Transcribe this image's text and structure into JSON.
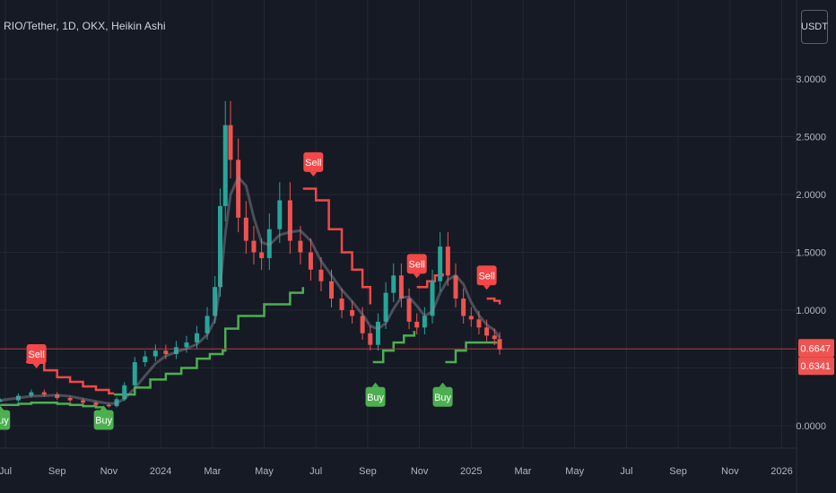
{
  "header": {
    "title": "RIO/Tether, 1D, OKX, Heikin Ashi",
    "currency": "USDT"
  },
  "colors": {
    "background": "#161a25",
    "grid": "#232733",
    "up": "#26a69a",
    "down": "#ef5350",
    "support": "#4caf50",
    "resistance": "#f44747",
    "ma": "#8a8f99",
    "last_price_line": "#b73a3a"
  },
  "chart_data": {
    "type": "line",
    "style": "heikin-ashi candles with trailing stop bands and buy/sell signals",
    "grid": true,
    "y_ticks": [
      "3.0000",
      "2.5000",
      "2.0000",
      "1.5000",
      "1.0000",
      "0.0000"
    ],
    "ylim": [
      -0.1,
      3.4
    ],
    "x_labels": [
      "Jul",
      "Sep",
      "Nov",
      "2024",
      "Mar",
      "May",
      "Jul",
      "Sep",
      "Nov",
      "2025",
      "Mar",
      "May",
      "Jul",
      "Sep",
      "Nov",
      "2026"
    ],
    "x_months": [
      0,
      2,
      4,
      6,
      8,
      10,
      12,
      14,
      16,
      18,
      20,
      22,
      24,
      26,
      28,
      30
    ],
    "price_series": {
      "month": [
        -0.2,
        0.5,
        1.0,
        1.5,
        2.0,
        2.5,
        3.0,
        3.5,
        4.0,
        4.3,
        4.6,
        5.0,
        5.4,
        5.8,
        6.2,
        6.6,
        7.0,
        7.4,
        7.8,
        8.1,
        8.3,
        8.5,
        8.7,
        9.0,
        9.3,
        9.6,
        9.9,
        10.2,
        10.6,
        11.0,
        11.4,
        11.8,
        12.2,
        12.6,
        13.0,
        13.4,
        13.8,
        14.1,
        14.4,
        14.7,
        15.0,
        15.3,
        15.6,
        15.9,
        16.2,
        16.5,
        16.8,
        17.1,
        17.4,
        17.7,
        18.0,
        18.3,
        18.6,
        18.9,
        19.1
      ],
      "close": [
        0.22,
        0.26,
        0.29,
        0.27,
        0.24,
        0.22,
        0.2,
        0.18,
        0.17,
        0.23,
        0.35,
        0.55,
        0.6,
        0.65,
        0.62,
        0.68,
        0.72,
        0.8,
        0.95,
        1.2,
        1.9,
        2.6,
        2.3,
        1.8,
        1.6,
        1.5,
        1.45,
        1.7,
        1.95,
        1.6,
        1.5,
        1.35,
        1.25,
        1.1,
        1.0,
        0.95,
        0.8,
        0.7,
        0.9,
        1.15,
        1.3,
        1.1,
        0.9,
        0.85,
        0.95,
        1.25,
        1.55,
        1.3,
        1.1,
        0.95,
        0.92,
        0.85,
        0.78,
        0.75,
        0.66
      ]
    },
    "trailing_stop": {
      "support": [
        [
          -0.2,
          0.18
        ],
        [
          0.5,
          0.19
        ],
        [
          1.0,
          0.2
        ],
        [
          1.5,
          0.2
        ],
        [
          2.0,
          0.19
        ],
        [
          2.5,
          0.18
        ],
        [
          3.0,
          0.17
        ],
        [
          3.5,
          0.16
        ],
        [
          3.8,
          0.16
        ]
      ],
      "resistance": [
        [
          0.8,
          0.55
        ],
        [
          1.5,
          0.48
        ],
        [
          2.0,
          0.42
        ],
        [
          2.5,
          0.38
        ],
        [
          3.0,
          0.34
        ],
        [
          3.5,
          0.31
        ],
        [
          4.0,
          0.28
        ],
        [
          4.2,
          0.28
        ]
      ],
      "support2": [
        [
          4.2,
          0.27
        ],
        [
          5.0,
          0.33
        ],
        [
          5.6,
          0.4
        ],
        [
          6.2,
          0.45
        ],
        [
          6.8,
          0.5
        ],
        [
          7.4,
          0.58
        ],
        [
          7.9,
          0.62
        ],
        [
          8.4,
          0.65
        ],
        [
          8.5,
          0.84
        ],
        [
          9.0,
          0.95
        ],
        [
          10.0,
          1.05
        ],
        [
          11.0,
          1.15
        ],
        [
          11.5,
          1.2
        ]
      ],
      "resistance2": [
        [
          11.5,
          2.05
        ],
        [
          12.0,
          1.95
        ],
        [
          12.5,
          1.7
        ],
        [
          13.0,
          1.5
        ],
        [
          13.4,
          1.35
        ],
        [
          13.8,
          1.2
        ],
        [
          14.1,
          1.05
        ]
      ],
      "support3": [
        [
          14.2,
          0.55
        ],
        [
          14.6,
          0.65
        ],
        [
          15.0,
          0.72
        ],
        [
          15.4,
          0.78
        ],
        [
          15.8,
          0.82
        ]
      ],
      "resistance3": [
        [
          15.9,
          1.2
        ],
        [
          16.3,
          1.25
        ],
        [
          16.6,
          1.3
        ],
        [
          16.9,
          1.32
        ]
      ],
      "support4": [
        [
          17.0,
          0.55
        ],
        [
          17.4,
          0.65
        ],
        [
          17.8,
          0.72
        ],
        [
          18.2,
          0.72
        ],
        [
          18.6,
          0.72
        ],
        [
          19.0,
          0.72
        ]
      ],
      "resistance4": [
        [
          18.6,
          1.1
        ],
        [
          18.9,
          1.08
        ],
        [
          19.1,
          1.05
        ]
      ]
    },
    "signals": [
      {
        "label": "Buy",
        "month": -0.2,
        "price": 0.05
      },
      {
        "label": "Sell",
        "month": 1.2,
        "price": 0.62
      },
      {
        "label": "Buy",
        "month": 3.8,
        "price": 0.05
      },
      {
        "label": "Sell",
        "month": 11.9,
        "price": 2.28
      },
      {
        "label": "Buy",
        "month": 14.3,
        "price": 0.25
      },
      {
        "label": "Sell",
        "month": 15.9,
        "price": 1.4
      },
      {
        "label": "Buy",
        "month": 16.9,
        "price": 0.25
      },
      {
        "label": "Sell",
        "month": 18.6,
        "price": 1.3
      }
    ],
    "price_labels": [
      {
        "value": "0.6647",
        "price": 0.6647
      },
      {
        "value": "0.6341",
        "price": 0.6341
      }
    ]
  }
}
